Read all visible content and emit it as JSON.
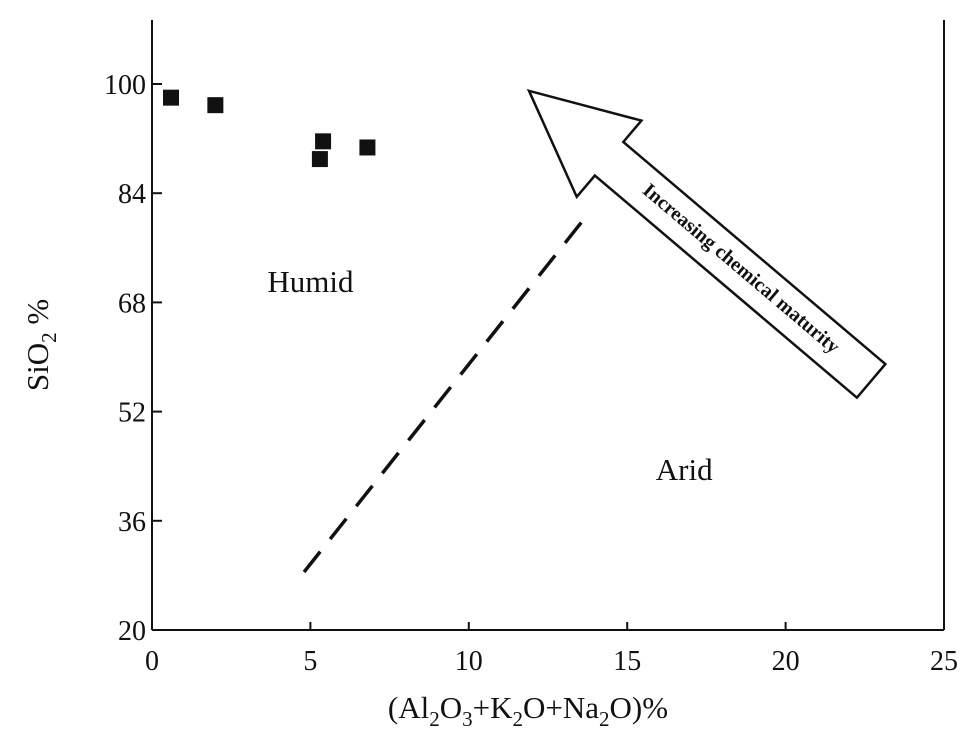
{
  "chart_data": {
    "type": "scatter",
    "title": "",
    "xlabel": "(Al2O3+K2O+Na2O)%",
    "ylabel": "SiO2 %",
    "xlim": [
      0,
      25
    ],
    "ylim": [
      20,
      106
    ],
    "x_ticks": [
      "0",
      "5",
      "10",
      "15",
      "20",
      "25"
    ],
    "y_ticks": [
      "20",
      "36",
      "52",
      "68",
      "84",
      "100"
    ],
    "grid": false,
    "legend": "none",
    "series": [
      {
        "marker": "filled-square",
        "color": "#111111",
        "points": [
          {
            "x": 0.6,
            "y": 98.0
          },
          {
            "x": 2.0,
            "y": 96.9
          },
          {
            "x": 5.3,
            "y": 89.0
          },
          {
            "x": 5.4,
            "y": 91.6
          },
          {
            "x": 6.8,
            "y": 90.7
          }
        ]
      }
    ],
    "annotations": {
      "humid_label": "Humid",
      "arid_label": "Arid",
      "arrow_label": "Increasing chemical maturity"
    },
    "boundary_line": {
      "style": "dashed",
      "from": {
        "x": 4.8,
        "y": 28.5
      },
      "to": {
        "x": 13.6,
        "y": 80.0
      }
    },
    "arrow": {
      "tail": {
        "x": 22.7,
        "y": 56.5
      },
      "head": {
        "x": 11.9,
        "y": 99.0
      }
    }
  }
}
